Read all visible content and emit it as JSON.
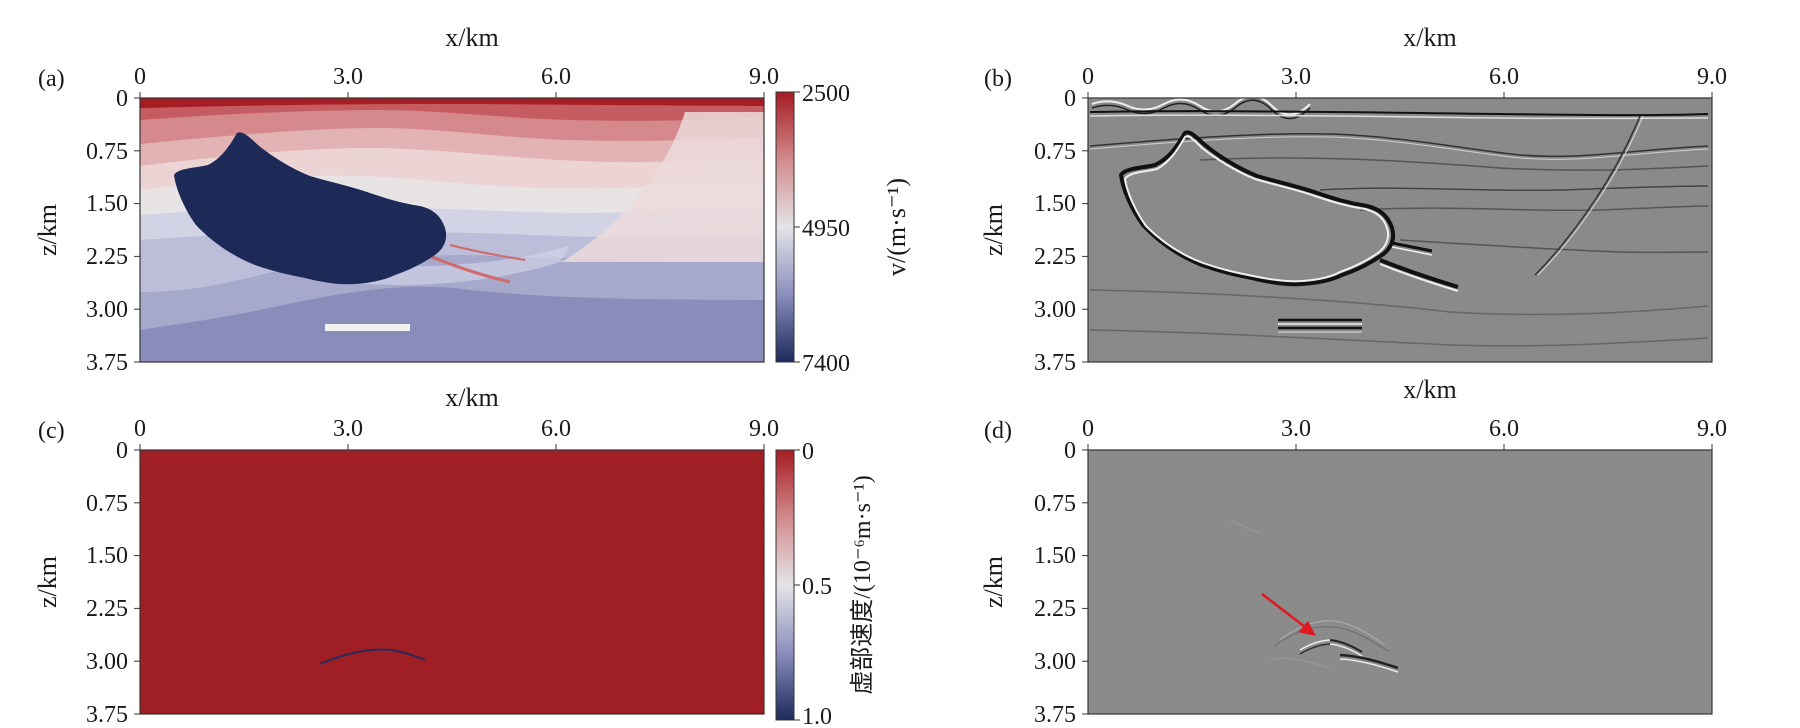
{
  "chart_data": [
    {
      "panel": "(a)",
      "type": "heatmap",
      "xlabel": "x/km",
      "ylabel": "z/km",
      "x_ticks": [
        "0",
        "3.0",
        "6.0",
        "9.0"
      ],
      "y_ticks": [
        "0",
        "0.75",
        "1.50",
        "2.25",
        "3.00",
        "3.75"
      ],
      "xlim": [
        0,
        9
      ],
      "ylim": [
        0,
        3.75
      ],
      "colorbar": {
        "label": "v/(m·s⁻¹)",
        "ticks": [
          "2500",
          "4950",
          "7400"
        ],
        "range": [
          2500,
          7400
        ]
      },
      "colors": {
        "low": "#a61c23",
        "mid": "#e2e2e6",
        "high": "#1b2a5b"
      }
    },
    {
      "panel": "(b)",
      "type": "heatmap",
      "xlabel": "x/km",
      "ylabel": "z/km",
      "x_ticks": [
        "0",
        "3.0",
        "6.0",
        "9.0"
      ],
      "y_ticks": [
        "0",
        "0.75",
        "1.50",
        "2.25",
        "3.00",
        "3.75"
      ],
      "xlim": [
        0,
        9
      ],
      "ylim": [
        0,
        3.75
      ],
      "colors": {
        "background": "#8a8a8a"
      }
    },
    {
      "panel": "(c)",
      "type": "heatmap",
      "xlabel": "x/km",
      "ylabel": "z/km",
      "x_ticks": [
        "0",
        "3.0",
        "6.0",
        "9.0"
      ],
      "y_ticks": [
        "0",
        "0.75",
        "1.50",
        "2.25",
        "3.00",
        "3.75"
      ],
      "xlim": [
        0,
        9
      ],
      "ylim": [
        0,
        3.75
      ],
      "colorbar": {
        "label": "虚部速度/(10⁻⁶m·s⁻¹)",
        "ticks": [
          "0",
          "0.5",
          "1.0"
        ],
        "range": [
          0,
          1.0
        ]
      },
      "colors": {
        "background": "#a01f25"
      }
    },
    {
      "panel": "(d)",
      "type": "heatmap",
      "xlabel": "x/km",
      "ylabel": "z/km",
      "x_ticks": [
        "0",
        "3.0",
        "6.0",
        "9.0"
      ],
      "y_ticks": [
        "0",
        "0.75",
        "1.50",
        "2.25",
        "3.00",
        "3.75"
      ],
      "xlim": [
        0,
        9
      ],
      "ylim": [
        0,
        3.75
      ],
      "colors": {
        "background": "#8b8b8b",
        "arrow": "#e0191e"
      }
    }
  ]
}
